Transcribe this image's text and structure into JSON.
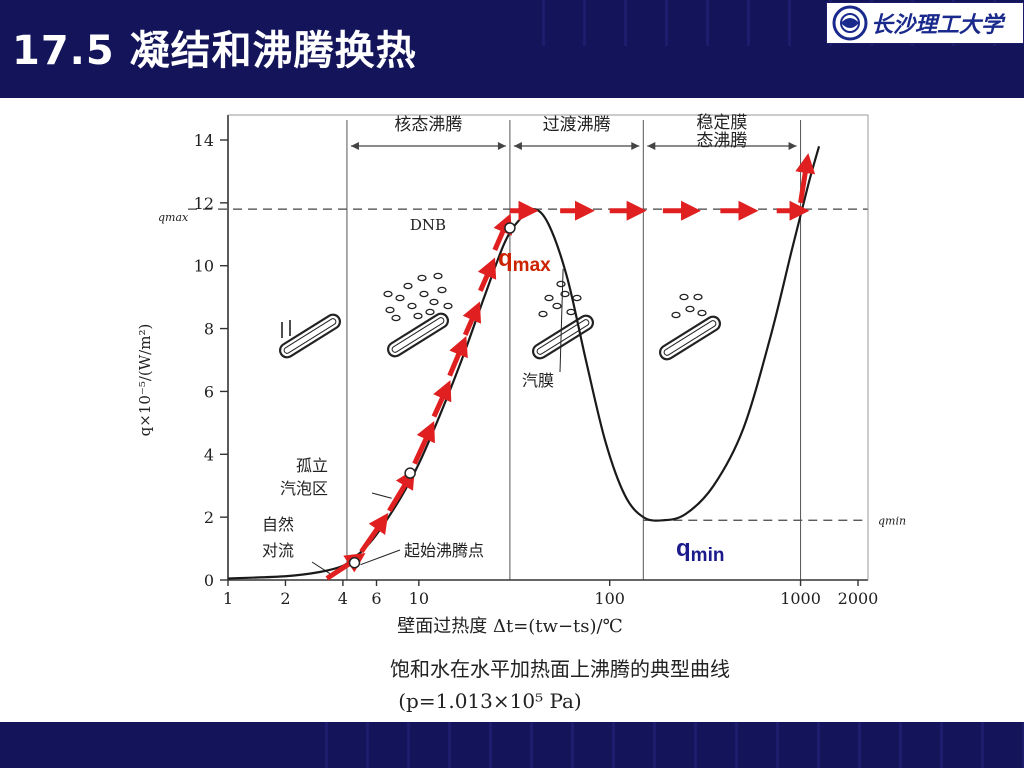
{
  "slide": {
    "title": "17.5  凝结和沸腾换热",
    "logo_text": "长沙理工大学"
  },
  "chart_data": {
    "type": "line",
    "x_scale": "log",
    "xlim": [
      1,
      2000
    ],
    "ylim": [
      0,
      14
    ],
    "x_ticks": [
      1,
      2,
      4,
      6,
      10,
      100,
      1000,
      2000
    ],
    "x_tick_labels": [
      "1",
      "2",
      "4",
      "6",
      "10",
      "100",
      "1000",
      "2000"
    ],
    "y_ticks": [
      0,
      2,
      4,
      6,
      8,
      10,
      12,
      14
    ],
    "y_tick_labels": [
      "0",
      "2",
      "4",
      "6",
      "8",
      "10",
      "12",
      "14"
    ],
    "ylabel": "q×10⁻⁵/(W/m²)",
    "xlabel": "壁面过热度 Δt=(tw−ts)/℃",
    "caption": "饱和水在水平加热面上沸腾的典型曲线",
    "caption2": "(p=1.013×10⁵ Pa)",
    "q_max_label": "qmax",
    "q_min_label": "qmin",
    "q_max_value": 11.8,
    "q_min_value": 1.9,
    "regions": [
      "核态沸腾",
      "过渡沸腾",
      "稳定膜态沸腾"
    ],
    "region_bounds": [
      4.2,
      30,
      150,
      1000
    ],
    "annotations": {
      "dnb": "DNB",
      "natural_convection": "自然对流",
      "isolated_bubbles": "孤立汽泡区",
      "onset_boiling": "起始沸腾点",
      "vapor_film": "汽膜",
      "red_qmax": "q",
      "red_qmax_sub": "max",
      "blue_qmin": "q",
      "blue_qmin_sub": "min"
    },
    "series": [
      {
        "points": [
          [
            1,
            0.05
          ],
          [
            2,
            0.12
          ],
          [
            3,
            0.25
          ],
          [
            4,
            0.45
          ],
          [
            4.5,
            0.7
          ],
          [
            5,
            0.9
          ],
          [
            6,
            1.45
          ],
          [
            8,
            2.6
          ],
          [
            10,
            3.7
          ],
          [
            13,
            5.3
          ],
          [
            17,
            7.1
          ],
          [
            22,
            9.0
          ],
          [
            28,
            10.7
          ],
          [
            33,
            11.4
          ],
          [
            40,
            11.8
          ],
          [
            48,
            11.3
          ],
          [
            60,
            9.6
          ],
          [
            75,
            7.0
          ],
          [
            95,
            4.4
          ],
          [
            120,
            2.7
          ],
          [
            150,
            2.0
          ],
          [
            190,
            1.9
          ],
          [
            250,
            2.1
          ],
          [
            350,
            3.0
          ],
          [
            500,
            4.8
          ],
          [
            700,
            7.8
          ],
          [
            900,
            10.5
          ],
          [
            1100,
            12.6
          ],
          [
            1250,
            13.8
          ]
        ]
      }
    ],
    "colors": {
      "curve": "#1a1a1a",
      "arrows": "#e02020",
      "qmax_text": "#cc2200",
      "qmin_text": "#1a1a8c"
    }
  }
}
